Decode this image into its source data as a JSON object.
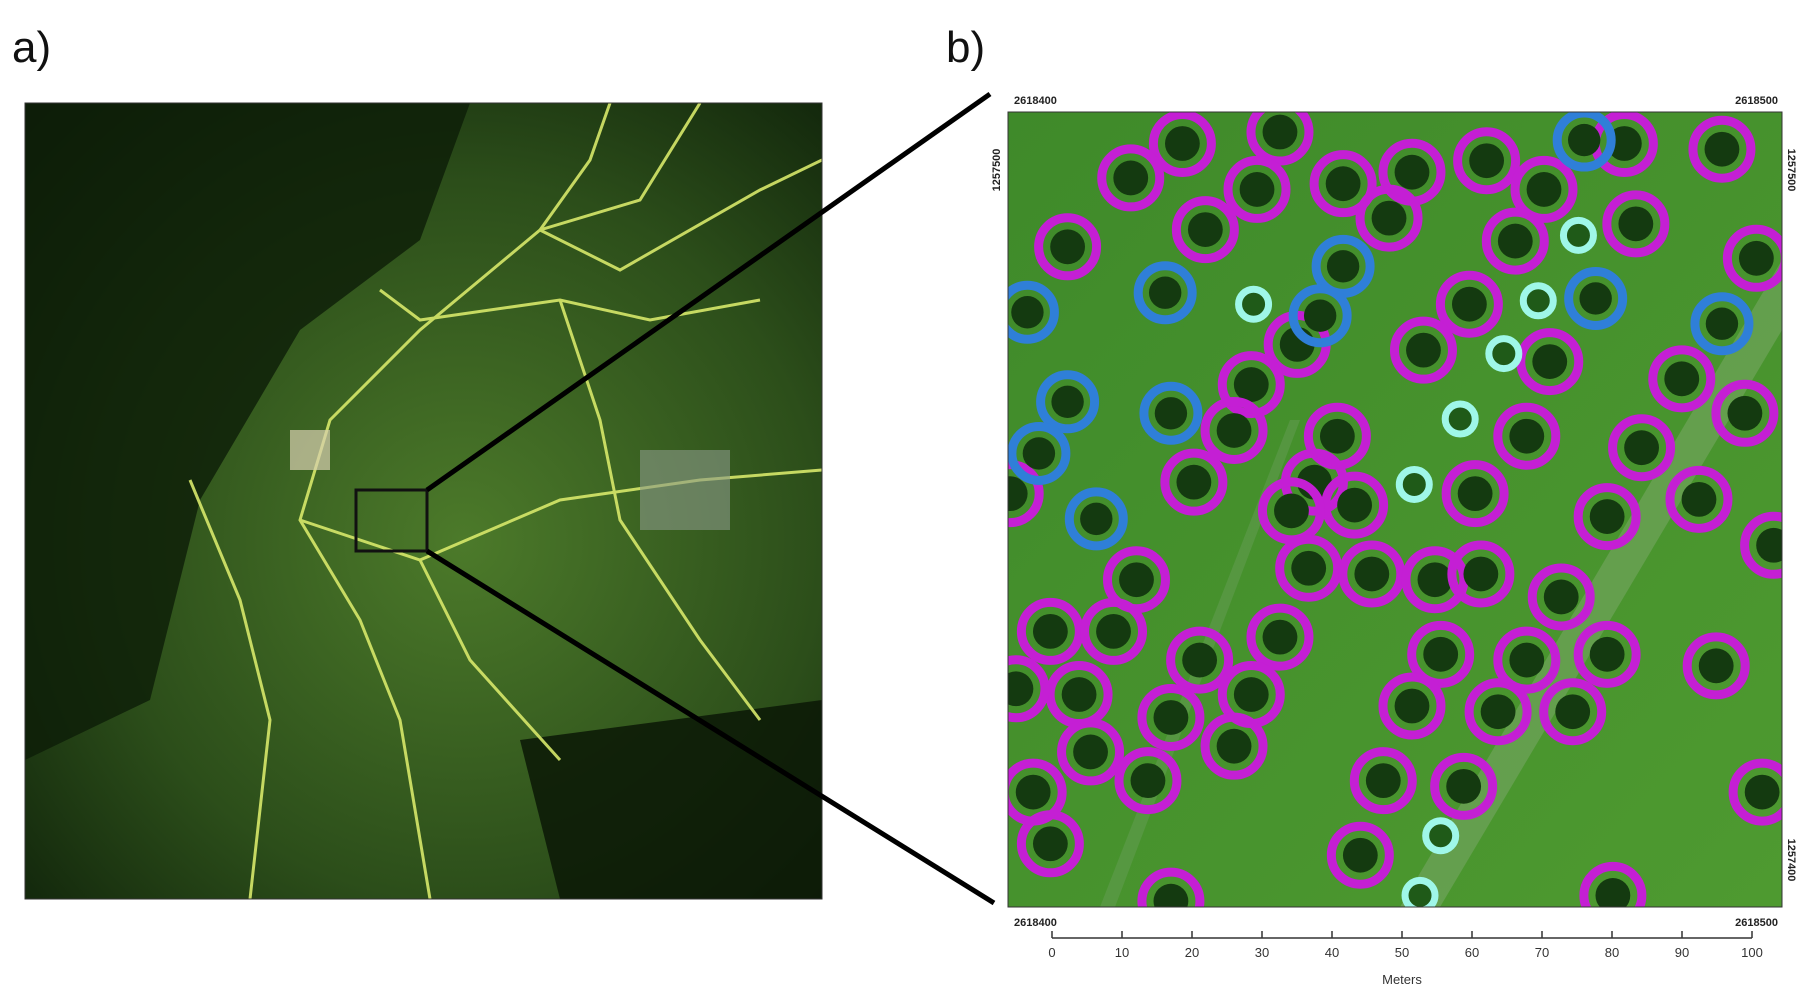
{
  "panel_a": {
    "label": "a)"
  },
  "panel_b": {
    "label": "b)",
    "coords": {
      "top_left": "2618400",
      "top_right": "2618500",
      "bottom_left": "2618400",
      "bottom_right": "2618500",
      "left_top": "1257500",
      "right_top": "1257500",
      "right_bottom": "1257400"
    }
  },
  "scale_bar": {
    "ticks": [
      0,
      10,
      20,
      30,
      40,
      50,
      60,
      70,
      80,
      90,
      100
    ],
    "unit": "Meters"
  }
}
